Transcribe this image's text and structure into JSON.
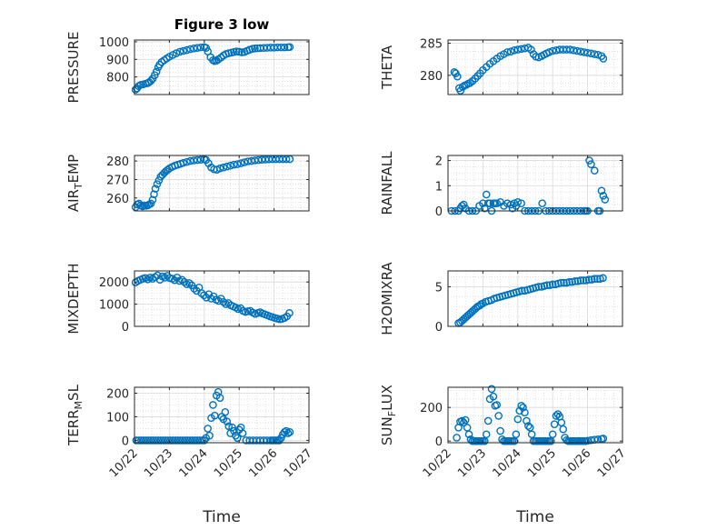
{
  "colors": {
    "marker": "#0072bd",
    "axis": "#262626",
    "grid": "#d9d9d9",
    "background": "#ffffff"
  },
  "chart_data": [
    {
      "type": "scatter",
      "title": "Figure 3 low",
      "ylabel": "PRESSURE",
      "ylim": [
        700,
        1010
      ],
      "yticks": [
        800,
        900,
        1000
      ],
      "yticklabels": [
        "800",
        "900",
        "1000"
      ],
      "xlim": [
        0,
        5
      ],
      "xticks": [
        0,
        1,
        2,
        3,
        4,
        5
      ],
      "x": [
        0.03,
        0.07,
        0.12,
        0.18,
        0.25,
        0.32,
        0.38,
        0.42,
        0.47,
        0.52,
        0.58,
        0.63,
        0.68,
        0.72,
        0.78,
        0.85,
        0.92,
        1.0,
        1.1,
        1.2,
        1.3,
        1.4,
        1.5,
        1.6,
        1.7,
        1.8,
        1.9,
        2.0,
        2.05,
        2.1,
        2.18,
        2.25,
        2.3,
        2.35,
        2.4,
        2.48,
        2.55,
        2.62,
        2.7,
        2.78,
        2.85,
        2.92,
        3.0,
        3.08,
        3.15,
        3.22,
        3.3,
        3.38,
        3.45,
        3.52,
        3.6,
        3.7,
        3.8,
        3.9,
        4.0,
        4.1,
        4.2,
        4.3,
        4.4,
        4.45
      ],
      "y": [
        728,
        735,
        748,
        755,
        758,
        762,
        765,
        770,
        778,
        790,
        810,
        830,
        855,
        870,
        885,
        895,
        905,
        915,
        925,
        935,
        943,
        948,
        953,
        958,
        962,
        965,
        968,
        970,
        965,
        945,
        912,
        895,
        890,
        893,
        900,
        910,
        922,
        930,
        935,
        938,
        942,
        945,
        943,
        940,
        942,
        948,
        955,
        960,
        962,
        963,
        964,
        965,
        966,
        967,
        967,
        968,
        968,
        968,
        969,
        970
      ]
    },
    {
      "type": "scatter",
      "ylabel": "THETA",
      "ylim": [
        277,
        285.5
      ],
      "yticks": [
        280,
        285
      ],
      "yticklabels": [
        "280",
        "285"
      ],
      "xlim": [
        0,
        5
      ],
      "xticks": [
        0,
        1,
        2,
        3,
        4,
        5
      ],
      "x": [
        0.18,
        0.22,
        0.27,
        0.32,
        0.36,
        0.42,
        0.47,
        0.52,
        0.58,
        0.63,
        0.7,
        0.78,
        0.85,
        0.92,
        1.0,
        1.1,
        1.2,
        1.3,
        1.4,
        1.5,
        1.6,
        1.7,
        1.8,
        1.9,
        2.0,
        2.1,
        2.2,
        2.3,
        2.38,
        2.45,
        2.52,
        2.6,
        2.68,
        2.75,
        2.82,
        2.9,
        3.0,
        3.1,
        3.2,
        3.3,
        3.4,
        3.5,
        3.6,
        3.7,
        3.8,
        3.9,
        4.0,
        4.1,
        4.2,
        4.3,
        4.4,
        4.45
      ],
      "y": [
        280.5,
        280.3,
        279.8,
        278.0,
        277.6,
        278.2,
        278.4,
        278.5,
        278.7,
        278.8,
        279.1,
        279.5,
        279.9,
        280.3,
        280.8,
        281.3,
        281.8,
        282.2,
        282.6,
        283.0,
        283.3,
        283.6,
        283.7,
        283.9,
        284.0,
        284.1,
        284.2,
        284.3,
        284.0,
        283.3,
        282.9,
        282.8,
        283.0,
        283.2,
        283.4,
        283.6,
        283.8,
        283.9,
        284.0,
        284.0,
        284.0,
        284.0,
        283.9,
        283.8,
        283.7,
        283.6,
        283.5,
        283.4,
        283.3,
        283.2,
        283.0,
        282.6
      ]
    },
    {
      "type": "scatter",
      "ylabel": "AIR_TEMP",
      "ylim": [
        253,
        283
      ],
      "yticks": [
        260,
        270,
        280
      ],
      "yticklabels": [
        "260",
        "270",
        "280"
      ],
      "xlim": [
        0,
        5
      ],
      "xticks": [
        0,
        1,
        2,
        3,
        4,
        5
      ],
      "x": [
        0.03,
        0.08,
        0.13,
        0.18,
        0.23,
        0.28,
        0.33,
        0.38,
        0.42,
        0.47,
        0.52,
        0.56,
        0.6,
        0.65,
        0.7,
        0.75,
        0.8,
        0.85,
        0.9,
        0.95,
        1.0,
        1.08,
        1.16,
        1.24,
        1.32,
        1.4,
        1.5,
        1.6,
        1.7,
        1.8,
        1.9,
        2.0,
        2.05,
        2.12,
        2.2,
        2.28,
        2.36,
        2.45,
        2.55,
        2.65,
        2.75,
        2.85,
        2.95,
        3.05,
        3.15,
        3.25,
        3.35,
        3.45,
        3.55,
        3.65,
        3.75,
        3.85,
        3.95,
        4.05,
        4.15,
        4.25,
        4.35,
        4.45
      ],
      "y": [
        255,
        256.5,
        257,
        256,
        255.5,
        256,
        255.8,
        256,
        256.5,
        257,
        259,
        262,
        265,
        267.5,
        269.5,
        271.5,
        272.5,
        273.5,
        274.5,
        275.2,
        276,
        276.8,
        277.5,
        278,
        278.5,
        279,
        279.5,
        280,
        280.3,
        280.5,
        280.7,
        281,
        280.5,
        278.8,
        276.5,
        275.5,
        275.3,
        276,
        276.5,
        277,
        277.5,
        278,
        278.3,
        278.8,
        279.3,
        279.8,
        280,
        280.3,
        280.5,
        280.7,
        280.8,
        280.9,
        281,
        281,
        281,
        281,
        281,
        281
      ]
    },
    {
      "type": "scatter",
      "ylabel": "RAINFALL",
      "ylim": [
        0,
        2.2
      ],
      "yticks": [
        0,
        1,
        2
      ],
      "yticklabels": [
        "0",
        "1",
        "2"
      ],
      "xlim": [
        0,
        5
      ],
      "xticks": [
        0,
        1,
        2,
        3,
        4,
        5
      ],
      "x": [
        0.1,
        0.2,
        0.3,
        0.35,
        0.4,
        0.45,
        0.5,
        0.6,
        0.7,
        0.8,
        0.9,
        1.0,
        1.05,
        1.1,
        1.15,
        1.2,
        1.25,
        1.3,
        1.35,
        1.4,
        1.5,
        1.6,
        1.7,
        1.8,
        1.85,
        1.9,
        1.95,
        2.0,
        2.1,
        2.2,
        2.3,
        2.4,
        2.5,
        2.6,
        2.7,
        2.8,
        2.9,
        3.0,
        3.1,
        3.2,
        3.3,
        3.4,
        3.5,
        3.6,
        3.7,
        3.8,
        3.9,
        3.95,
        4.0,
        4.05,
        4.1,
        4.2,
        4.3,
        4.35,
        4.4,
        4.45,
        4.5
      ],
      "y": [
        0,
        0,
        0,
        0.1,
        0.2,
        0.25,
        0.1,
        0,
        0,
        0,
        0.2,
        0.3,
        0.1,
        0.65,
        0.3,
        0.3,
        0,
        0.3,
        0.3,
        0.3,
        0.35,
        0.2,
        0.3,
        0.25,
        0.1,
        0.3,
        0.2,
        0.35,
        0.3,
        0,
        0,
        0,
        0,
        0,
        0.3,
        0,
        0,
        0,
        0,
        0,
        0,
        0,
        0,
        0,
        0,
        0,
        0,
        0,
        0,
        2.0,
        1.85,
        1.6,
        0,
        0,
        0.8,
        0.6,
        0.45
      ]
    },
    {
      "type": "scatter",
      "ylabel": "MIXDEPTH",
      "ylim": [
        0,
        2500
      ],
      "yticks": [
        0,
        1000,
        2000
      ],
      "yticklabels": [
        "0",
        "1000",
        "2000"
      ],
      "xlim": [
        0,
        5
      ],
      "xticks": [
        0,
        1,
        2,
        3,
        4,
        5
      ],
      "x": [
        0.03,
        0.1,
        0.17,
        0.24,
        0.31,
        0.38,
        0.45,
        0.52,
        0.59,
        0.66,
        0.73,
        0.8,
        0.87,
        0.94,
        1.01,
        1.08,
        1.15,
        1.22,
        1.29,
        1.36,
        1.43,
        1.5,
        1.57,
        1.64,
        1.71,
        1.78,
        1.85,
        1.92,
        1.99,
        2.06,
        2.13,
        2.2,
        2.27,
        2.34,
        2.41,
        2.48,
        2.55,
        2.62,
        2.69,
        2.76,
        2.83,
        2.9,
        2.97,
        3.04,
        3.11,
        3.18,
        3.25,
        3.32,
        3.39,
        3.46,
        3.53,
        3.6,
        3.67,
        3.74,
        3.81,
        3.88,
        3.95,
        4.02,
        4.09,
        4.16,
        4.23,
        4.3,
        4.37,
        4.44
      ],
      "y": [
        1980,
        2050,
        2100,
        2150,
        2180,
        2120,
        2200,
        2150,
        2220,
        2300,
        2100,
        2250,
        2200,
        2280,
        2180,
        2150,
        2080,
        2200,
        2050,
        2100,
        2000,
        1900,
        1950,
        1850,
        1700,
        1600,
        1750,
        1500,
        1400,
        1300,
        1450,
        1250,
        1350,
        1200,
        1150,
        1250,
        1100,
        1000,
        1050,
        950,
        900,
        850,
        780,
        820,
        700,
        650,
        680,
        700,
        620,
        560,
        600,
        640,
        580,
        540,
        500,
        450,
        420,
        380,
        350,
        320,
        340,
        380,
        450,
        600
      ]
    },
    {
      "type": "scatter",
      "ylabel": "H2OMIXRA",
      "ylim": [
        0,
        7
      ],
      "yticks": [
        0,
        5
      ],
      "yticklabels": [
        "0",
        "5"
      ],
      "xlim": [
        0,
        5
      ],
      "xticks": [
        0,
        1,
        2,
        3,
        4,
        5
      ],
      "x": [
        0.3,
        0.35,
        0.4,
        0.45,
        0.5,
        0.55,
        0.6,
        0.65,
        0.7,
        0.75,
        0.8,
        0.85,
        0.9,
        0.95,
        1.0,
        1.08,
        1.16,
        1.24,
        1.32,
        1.4,
        1.48,
        1.56,
        1.64,
        1.72,
        1.8,
        1.88,
        1.96,
        2.04,
        2.12,
        2.2,
        2.28,
        2.36,
        2.44,
        2.52,
        2.6,
        2.68,
        2.76,
        2.84,
        2.92,
        3.0,
        3.08,
        3.16,
        3.24,
        3.32,
        3.4,
        3.48,
        3.56,
        3.64,
        3.72,
        3.8,
        3.88,
        3.96,
        4.04,
        4.12,
        4.2,
        4.28,
        4.36,
        4.44
      ],
      "y": [
        0.4,
        0.5,
        0.7,
        0.9,
        1.1,
        1.3,
        1.5,
        1.7,
        1.9,
        2.1,
        2.3,
        2.5,
        2.6,
        2.8,
        2.9,
        3.1,
        3.2,
        3.3,
        3.5,
        3.6,
        3.7,
        3.8,
        3.9,
        4.0,
        4.1,
        4.2,
        4.3,
        4.4,
        4.5,
        4.5,
        4.6,
        4.7,
        4.8,
        4.9,
        5.0,
        5.0,
        5.1,
        5.2,
        5.2,
        5.3,
        5.3,
        5.4,
        5.5,
        5.5,
        5.5,
        5.6,
        5.6,
        5.7,
        5.7,
        5.8,
        5.8,
        5.8,
        5.9,
        5.9,
        6.0,
        6.0,
        6.0,
        6.1
      ]
    },
    {
      "type": "scatter",
      "ylabel": "TERR_MSL",
      "ylim": [
        -10,
        225
      ],
      "yticks": [
        0,
        100,
        200
      ],
      "yticklabels": [
        "0",
        "100",
        "200"
      ],
      "xlim": [
        0,
        5
      ],
      "xticks": [
        0,
        1,
        2,
        3,
        4,
        5
      ],
      "xticklabels": [
        "10/22",
        "10/23",
        "10/24",
        "10/25",
        "10/26",
        "10/27"
      ],
      "xlabel": "Time",
      "x": [
        0.05,
        0.12,
        0.19,
        0.26,
        0.33,
        0.4,
        0.47,
        0.54,
        0.61,
        0.68,
        0.75,
        0.82,
        0.89,
        0.96,
        1.03,
        1.1,
        1.17,
        1.24,
        1.31,
        1.38,
        1.45,
        1.52,
        1.59,
        1.66,
        1.73,
        1.8,
        1.87,
        1.94,
        2.0,
        2.05,
        2.1,
        2.15,
        2.2,
        2.25,
        2.3,
        2.35,
        2.4,
        2.45,
        2.5,
        2.55,
        2.6,
        2.65,
        2.7,
        2.75,
        2.8,
        2.85,
        2.9,
        2.95,
        3.0,
        3.05,
        3.1,
        3.2,
        3.3,
        3.4,
        3.5,
        3.6,
        3.7,
        3.8,
        3.9,
        3.95,
        4.0,
        4.05,
        4.1,
        4.15,
        4.2,
        4.25,
        4.3,
        4.35,
        4.4,
        4.45
      ],
      "y": [
        0,
        0,
        0,
        0,
        0,
        0,
        0,
        0,
        0,
        0,
        0,
        0,
        0,
        0,
        0,
        0,
        0,
        0,
        0,
        0,
        0,
        0,
        0,
        0,
        0,
        0,
        0,
        0,
        0,
        10,
        50,
        20,
        95,
        150,
        105,
        190,
        205,
        180,
        100,
        90,
        120,
        80,
        60,
        30,
        55,
        40,
        20,
        10,
        45,
        55,
        30,
        0,
        0,
        0,
        0,
        0,
        0,
        0,
        0,
        0,
        0,
        0,
        0,
        0,
        10,
        25,
        35,
        40,
        30,
        35
      ]
    },
    {
      "type": "scatter",
      "ylabel": "SUN_FLUX",
      "ylim": [
        -10,
        320
      ],
      "yticks": [
        0,
        200
      ],
      "yticklabels": [
        "0",
        "200"
      ],
      "xlim": [
        0,
        5
      ],
      "xticks": [
        0,
        1,
        2,
        3,
        4,
        5
      ],
      "xticklabels": [
        "10/22",
        "10/23",
        "10/24",
        "10/25",
        "10/26",
        "10/27"
      ],
      "xlabel": "Time",
      "x": [
        0.25,
        0.3,
        0.35,
        0.4,
        0.45,
        0.5,
        0.55,
        0.6,
        0.65,
        0.7,
        0.75,
        0.8,
        0.85,
        0.9,
        0.95,
        1.0,
        1.05,
        1.1,
        1.15,
        1.2,
        1.25,
        1.3,
        1.35,
        1.4,
        1.45,
        1.5,
        1.55,
        1.6,
        1.65,
        1.7,
        1.75,
        1.8,
        1.85,
        1.9,
        1.95,
        2.0,
        2.05,
        2.1,
        2.15,
        2.2,
        2.25,
        2.3,
        2.35,
        2.4,
        2.45,
        2.5,
        2.55,
        2.6,
        2.65,
        2.7,
        2.75,
        2.8,
        2.85,
        2.9,
        2.95,
        3.0,
        3.05,
        3.1,
        3.15,
        3.2,
        3.25,
        3.3,
        3.35,
        3.4,
        3.45,
        3.5,
        3.55,
        3.6,
        3.65,
        3.7,
        3.75,
        3.8,
        3.85,
        3.9,
        3.95,
        4.0,
        4.1,
        4.2,
        4.3,
        4.4,
        4.45
      ],
      "y": [
        20,
        80,
        115,
        120,
        110,
        125,
        80,
        40,
        10,
        0,
        0,
        0,
        0,
        0,
        0,
        0,
        0,
        40,
        120,
        250,
        310,
        265,
        210,
        215,
        150,
        60,
        10,
        0,
        0,
        0,
        0,
        0,
        0,
        0,
        40,
        130,
        180,
        210,
        200,
        170,
        120,
        90,
        80,
        40,
        0,
        0,
        0,
        0,
        0,
        0,
        0,
        0,
        0,
        0,
        0,
        40,
        100,
        150,
        160,
        145,
        110,
        70,
        20,
        5,
        0,
        0,
        0,
        0,
        0,
        0,
        0,
        0,
        0,
        0,
        0,
        2,
        5,
        8,
        10,
        12,
        15
      ]
    }
  ]
}
